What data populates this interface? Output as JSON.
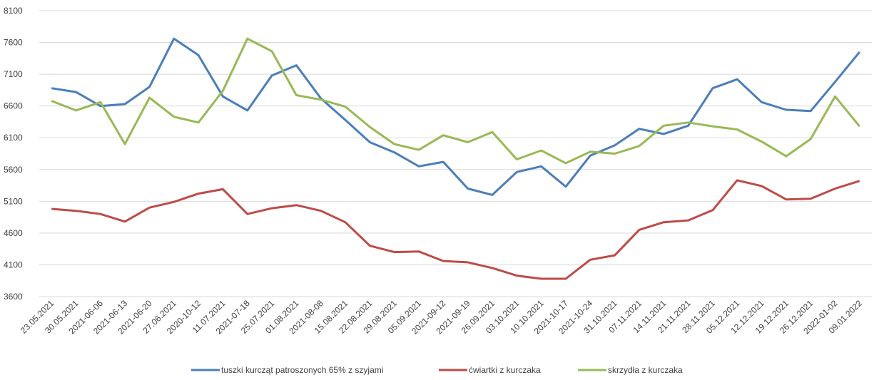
{
  "chart_data": {
    "type": "line",
    "categories": [
      "23.05.2021",
      "30.05.2021",
      "2021-06-06",
      "2021-06-13",
      "2021-06-20",
      "27.06.2021",
      "2020-10-12",
      "11.07.2021",
      "2021-07-18",
      "25.07.2021",
      "01.08.2021",
      "2021-08-08",
      "15.08.2021",
      "22.08.2021",
      "29.08.2021",
      "05.09.2021",
      "2021-09-12",
      "2021-09-19",
      "26.09.2021",
      "03.10.2021",
      "10.10.2021",
      "2021-10-17",
      "2021-10-24",
      "31.10.2021",
      "07.11.2021",
      "14.11.2021",
      "21.11.2021",
      "28.11.2021",
      "05.12.2021",
      "12.12.2021",
      "19.12.2021",
      "26.12.2021",
      "2022-01-02",
      "09.01.2022"
    ],
    "series": [
      {
        "name": "tuszki kurcząt patroszonych 65% z szyjami",
        "color": "#4a7ebb",
        "values": [
          6880,
          6820,
          6600,
          6630,
          6900,
          7660,
          7400,
          6750,
          6530,
          7080,
          7240,
          6720,
          6380,
          6030,
          5870,
          5650,
          5720,
          5300,
          5200,
          5560,
          5650,
          5330,
          5820,
          5980,
          6240,
          6160,
          6290,
          6880,
          7020,
          6660,
          6540,
          6520,
          6980,
          7450
        ]
      },
      {
        "name": "ćwiartki z kurczaka",
        "color": "#be4b48",
        "values": [
          4980,
          4950,
          4900,
          4780,
          5000,
          5090,
          5220,
          5290,
          4900,
          4990,
          5040,
          4950,
          4770,
          4400,
          4300,
          4310,
          4160,
          4140,
          4050,
          3930,
          3880,
          3880,
          4180,
          4250,
          4650,
          4770,
          4800,
          4960,
          5430,
          5340,
          5130,
          5140,
          5300,
          5420
        ]
      },
      {
        "name": "skrzydła z kurczaka",
        "color": "#98b954",
        "values": [
          6680,
          6530,
          6660,
          6000,
          6730,
          6430,
          6340,
          6840,
          7660,
          7460,
          6770,
          6700,
          6590,
          6270,
          6000,
          5910,
          6140,
          6030,
          6190,
          5760,
          5900,
          5700,
          5880,
          5850,
          5970,
          6290,
          6340,
          6280,
          6230,
          6040,
          5810,
          6080,
          6750,
          6280
        ]
      }
    ],
    "ylim": [
      3600,
      8100
    ],
    "yticks": [
      3600,
      4100,
      4600,
      5100,
      5600,
      6100,
      6600,
      7100,
      7600,
      8100
    ],
    "grid": true,
    "legend": "bottom"
  }
}
